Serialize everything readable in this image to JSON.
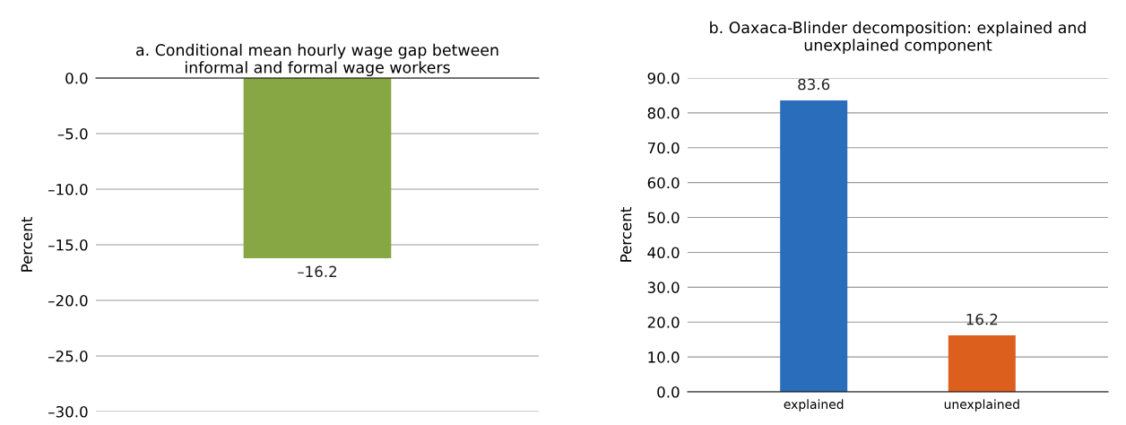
{
  "chart_data": [
    {
      "type": "bar",
      "title": "a. Conditional mean hourly wage gap between\ninformal and formal wage workers",
      "ylabel": "Percent",
      "categories": [
        null
      ],
      "series": [
        {
          "color": "#86a743",
          "values": [
            -16.2
          ],
          "value_labels": [
            "–16.2"
          ]
        }
      ],
      "ylim": [
        -30,
        0
      ],
      "yticks": [
        {
          "value": -30,
          "label": "–30.0"
        },
        {
          "value": -25,
          "label": "–25.0"
        },
        {
          "value": -20,
          "label": "–20.0"
        },
        {
          "value": -15,
          "label": "–15.0"
        },
        {
          "value": -10,
          "label": "–10.0"
        },
        {
          "value": -5,
          "label": "–5.0"
        },
        {
          "value": 0,
          "label": "0.0"
        }
      ],
      "grid": "y",
      "legend": false
    },
    {
      "type": "bar",
      "title": "b. Oaxaca-Blinder decomposition: explained and\nunexplained component",
      "ylabel": "Percent",
      "categories": [
        "explained",
        "unexplained"
      ],
      "series": [
        {
          "colors": [
            "#2a6ebb",
            "#dd5f1e"
          ],
          "values": [
            83.6,
            16.2
          ]
        }
      ],
      "data_labels": true,
      "ylim": [
        0,
        90
      ],
      "yticks": [
        {
          "value": 0,
          "label": "0.0"
        },
        {
          "value": 10,
          "label": "10.0"
        },
        {
          "value": 20,
          "label": "20.0"
        },
        {
          "value": 30,
          "label": "30.0"
        },
        {
          "value": 40,
          "label": "40.0"
        },
        {
          "value": 50,
          "label": "50.0"
        },
        {
          "value": 60,
          "label": "60.0"
        },
        {
          "value": 70,
          "label": "70.0"
        },
        {
          "value": 80,
          "label": "80.0"
        },
        {
          "value": 90,
          "label": "90.0"
        }
      ],
      "grid": "y",
      "legend": false
    }
  ]
}
